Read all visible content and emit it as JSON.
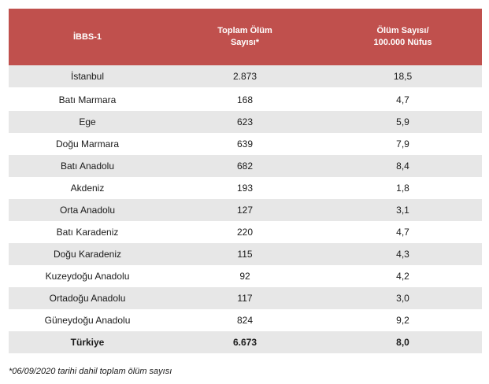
{
  "table": {
    "headers": [
      "İBBS-1",
      "Toplam Ölüm Sayısı*",
      "Ölüm Sayısı/ 100.000 Nüfus"
    ],
    "header_lines": {
      "col2_line1": "Toplam Ölüm",
      "col2_line2": "Sayısı*",
      "col3_line1": "Ölüm Sayısı/",
      "col3_line2": "100.000 Nüfus"
    },
    "rows": [
      {
        "region": "İstanbul",
        "deaths": "2.873",
        "rate": "18,5"
      },
      {
        "region": "Batı Marmara",
        "deaths": "168",
        "rate": "4,7"
      },
      {
        "region": "Ege",
        "deaths": "623",
        "rate": "5,9"
      },
      {
        "region": "Doğu Marmara",
        "deaths": "639",
        "rate": "7,9"
      },
      {
        "region": "Batı Anadolu",
        "deaths": "682",
        "rate": "8,4"
      },
      {
        "region": "Akdeniz",
        "deaths": "193",
        "rate": "1,8"
      },
      {
        "region": "Orta Anadolu",
        "deaths": "127",
        "rate": "3,1"
      },
      {
        "region": "Batı Karadeniz",
        "deaths": "220",
        "rate": "4,7"
      },
      {
        "region": "Doğu Karadeniz",
        "deaths": "115",
        "rate": "4,3"
      },
      {
        "region": "Kuzeydoğu Anadolu",
        "deaths": "92",
        "rate": "4,2"
      },
      {
        "region": "Ortadoğu Anadolu",
        "deaths": "117",
        "rate": "3,0"
      },
      {
        "region": "Güneydoğu Anadolu",
        "deaths": "824",
        "rate": "9,2"
      }
    ],
    "total": {
      "region": "Türkiye",
      "deaths": "6.673",
      "rate": "8,0"
    }
  },
  "footnote": "*06/09/2020 tarihi dahil toplam ölüm sayısı",
  "colors": {
    "header_bg": "#c0504d",
    "row_band": "#e7e7e7"
  }
}
